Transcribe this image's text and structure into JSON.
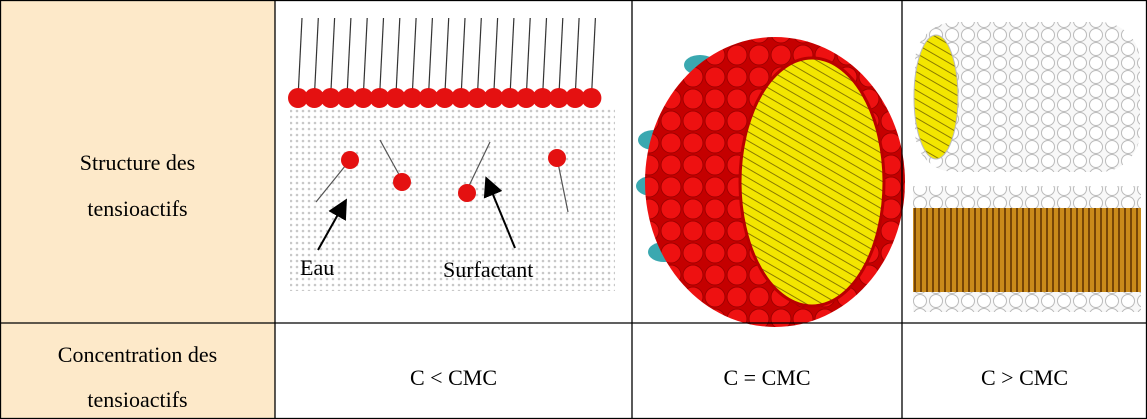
{
  "table": {
    "row_headers": [
      "Structure des tensioactifs",
      "Concentration des tensioactifs"
    ],
    "diagram_labels": [
      "Eau",
      "Surfactant"
    ],
    "concentrations": [
      "C < CMC",
      "C = CMC",
      "C > CMC"
    ]
  }
}
